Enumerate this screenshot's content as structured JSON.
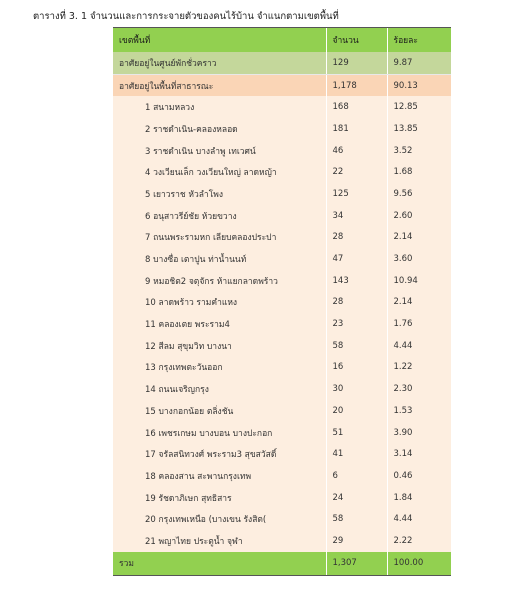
{
  "caption": "ตารางที่ 3. 1 จำนวนและการกระจายตัวของคนไร้บ้าน จำแนกตามเขตพื้นที่",
  "table": {
    "headers": [
      "เขตพื้นที่",
      "จำนวน",
      "ร้อยละ"
    ],
    "shelter": {
      "label": "อาศัยอยู่ในศูนย์พักชั่วคราว",
      "count": "129",
      "percent": "9.87"
    },
    "public": {
      "label": "อาศัยอยู่ในพื้นที่สาธารณะ",
      "count": "1,178",
      "percent": "90.13"
    },
    "districts": [
      {
        "name": "1 สนามหลวง",
        "count": "168",
        "percent": "12.85"
      },
      {
        "name": "2 ราชดำเนิน-คลองหลอด",
        "count": "181",
        "percent": "13.85"
      },
      {
        "name": "3 ราชดำเนิน บางลำพู เทเวศน์",
        "count": "46",
        "percent": "3.52"
      },
      {
        "name": "4 วงเวียนเล็ก วงเวียนใหญ่ ลาดหญ้า",
        "count": "22",
        "percent": "1.68"
      },
      {
        "name": "5 เยาวราช หัวลำโพง",
        "count": "125",
        "percent": "9.56"
      },
      {
        "name": "6 อนุสาวรีย์ชัย ห้วยขวาง",
        "count": "34",
        "percent": "2.60"
      },
      {
        "name": "7 ถนนพระรามหก เลียบคลองประปา",
        "count": "28",
        "percent": "2.14"
      },
      {
        "name": "8 บางซื่อ เตาปูน ท่าน้ำนนท์",
        "count": "47",
        "percent": "3.60"
      },
      {
        "name": "9 หมอชิต2 จตุจักร ห้าแยกลาดพร้าว",
        "count": "143",
        "percent": "10.94"
      },
      {
        "name": "10 ลาดพร้าว รามคำแหง",
        "count": "28",
        "percent": "2.14"
      },
      {
        "name": "11 คลองเตย พระราม4",
        "count": "23",
        "percent": "1.76"
      },
      {
        "name": "12 สีลม สุขุมวิท บางนา",
        "count": "58",
        "percent": "4.44"
      },
      {
        "name": "13 กรุงเทพตะวันออก",
        "count": "16",
        "percent": "1.22"
      },
      {
        "name": "14 ถนนเจริญกรุง",
        "count": "30",
        "percent": "2.30"
      },
      {
        "name": "15 บางกอกน้อย ตลิ่งชัน",
        "count": "20",
        "percent": "1.53"
      },
      {
        "name": "16 เพชรเกษม บางบอน บางปะกอก",
        "count": "51",
        "percent": "3.90"
      },
      {
        "name": "17 จรัลสนิทวงศ์ พระราม3 สุขสวัสดิ์",
        "count": "41",
        "percent": "3.14"
      },
      {
        "name": "18 คลองสาน สะพานกรุงเทพ",
        "count": "6",
        "percent": "0.46"
      },
      {
        "name": "19 รัชดาภิเษก สุทธิสาร",
        "count": "24",
        "percent": "1.84"
      },
      {
        "name": "20 กรุงเทพเหนือ (บางเขน รังสิต(",
        "count": "58",
        "percent": "4.44"
      },
      {
        "name": "21 พญาไทย ประตูน้ำ จุฬา",
        "count": "29",
        "percent": "2.22"
      }
    ],
    "total": {
      "label": "รวม",
      "count": "1,307",
      "percent": "100.00"
    }
  }
}
